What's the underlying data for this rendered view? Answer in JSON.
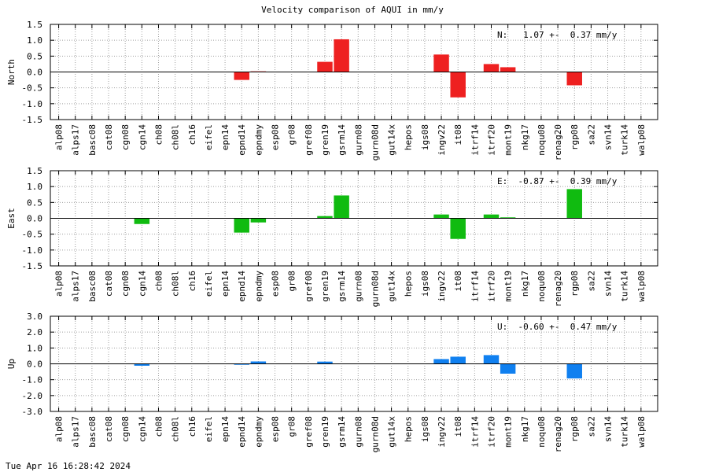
{
  "title": "Velocity comparison of AQUI in mm/y",
  "footer": "Tue Apr 16 16:28:42 2024",
  "colors": {
    "north": "#ee2020",
    "east": "#10bb10",
    "up": "#1080f0"
  },
  "chart_data": [
    {
      "type": "bar",
      "ylabel": "North",
      "ylim": [
        -1.5,
        1.5
      ],
      "yticks": [
        "-1.5",
        "-1.0",
        "-0.5",
        "0.0",
        "0.5",
        "1.0",
        "1.5"
      ],
      "annotation": "N:   1.07 +-  0.37 mm/y",
      "grid": true,
      "categories": [
        "alp08",
        "alps17",
        "basc08",
        "cat08",
        "cgn08",
        "cgn14",
        "ch08",
        "ch08l",
        "ch16",
        "eifel",
        "epn14",
        "epnd14",
        "epndmy",
        "esp08",
        "gr08",
        "gref08",
        "gren19",
        "gsrm14",
        "gurn08",
        "gurn08d",
        "gut14x",
        "hepos",
        "igs08",
        "ingv22",
        "it08",
        "itrf14",
        "itrf20",
        "mont19",
        "nkg17",
        "noqu08",
        "renag20",
        "rgp08",
        "sa22",
        "svn14",
        "turk14",
        "walp08"
      ],
      "values": [
        0,
        0,
        0,
        0,
        0,
        0,
        0,
        0,
        0,
        0,
        0,
        -0.25,
        0.02,
        0,
        0,
        0,
        0.32,
        1.03,
        0,
        0,
        0,
        0,
        0,
        0.55,
        -0.8,
        0,
        0.25,
        0.15,
        0,
        0,
        0,
        -0.42,
        0,
        0,
        0,
        0
      ]
    },
    {
      "type": "bar",
      "ylabel": "East",
      "ylim": [
        -1.5,
        1.5
      ],
      "yticks": [
        "-1.5",
        "-1.0",
        "-0.5",
        "0.0",
        "0.5",
        "1.0",
        "1.5"
      ],
      "annotation": "E:  -0.87 +-  0.39 mm/y",
      "grid": true,
      "categories": [
        "alp08",
        "alps17",
        "basc08",
        "cat08",
        "cgn08",
        "cgn14",
        "ch08",
        "ch08l",
        "ch16",
        "eifel",
        "epn14",
        "epnd14",
        "epndmy",
        "esp08",
        "gr08",
        "gref08",
        "gren19",
        "gsrm14",
        "gurn08",
        "gurn08d",
        "gut14x",
        "hepos",
        "igs08",
        "ingv22",
        "it08",
        "itrf14",
        "itrf20",
        "mont19",
        "nkg17",
        "noqu08",
        "renag20",
        "rgp08",
        "sa22",
        "svn14",
        "turk14",
        "walp08"
      ],
      "values": [
        0,
        0,
        0,
        0,
        0,
        -0.18,
        0,
        0,
        0,
        0,
        0,
        -0.45,
        -0.13,
        0,
        0,
        0,
        0.07,
        0.72,
        0,
        0,
        0,
        0,
        0,
        0.12,
        -0.65,
        0,
        0.12,
        0.03,
        0,
        0,
        0,
        0.92,
        0,
        0,
        0,
        0
      ]
    },
    {
      "type": "bar",
      "ylabel": "Up",
      "ylim": [
        -3.0,
        3.0
      ],
      "yticks": [
        "-3.0",
        "-2.0",
        "-1.0",
        "0.0",
        "1.0",
        "2.0",
        "3.0"
      ],
      "annotation": "U:  -0.60 +-  0.47 mm/y",
      "grid": true,
      "categories": [
        "alp08",
        "alps17",
        "basc08",
        "cat08",
        "cgn08",
        "cgn14",
        "ch08",
        "ch08l",
        "ch16",
        "eifel",
        "epn14",
        "epnd14",
        "epndmy",
        "esp08",
        "gr08",
        "gref08",
        "gren19",
        "gsrm14",
        "gurn08",
        "gurn08d",
        "gut14x",
        "hepos",
        "igs08",
        "ingv22",
        "it08",
        "itrf14",
        "itrf20",
        "mont19",
        "nkg17",
        "noqu08",
        "renag20",
        "rgp08",
        "sa22",
        "svn14",
        "turk14",
        "walp08"
      ],
      "values": [
        0,
        0,
        0,
        0,
        0,
        -0.12,
        0,
        0,
        0,
        0,
        0,
        -0.06,
        0.15,
        0,
        0,
        0,
        0.14,
        0,
        0,
        0,
        0,
        0,
        0,
        0.3,
        0.45,
        0,
        0.55,
        -0.62,
        0,
        0,
        0,
        -0.92,
        0,
        0,
        0,
        0
      ]
    }
  ]
}
